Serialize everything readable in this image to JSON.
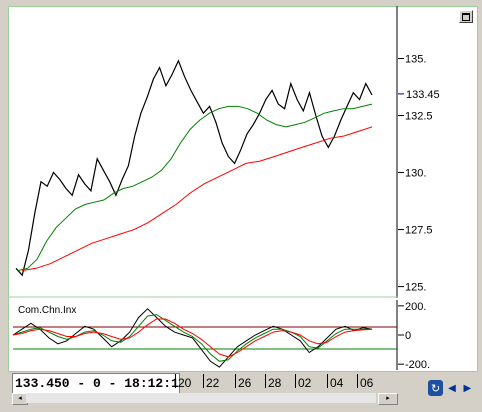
{
  "chart_data": [
    {
      "type": "line",
      "title": "",
      "y_ticks": [
        "135.",
        "132.5",
        "130.",
        "127.5",
        "125."
      ],
      "last_value": "133.45",
      "ylim": [
        124.5,
        137.3
      ],
      "series": [
        {
          "color": "#000000",
          "values": [
            125.8,
            125.5,
            126.6,
            128.2,
            129.6,
            129.4,
            130.0,
            129.7,
            129.3,
            129.0,
            129.9,
            129.5,
            129.2,
            130.6,
            130.1,
            129.6,
            129.0,
            129.7,
            130.3,
            131.6,
            132.6,
            133.3,
            134.1,
            134.6,
            133.8,
            134.3,
            134.9,
            134.2,
            133.6,
            133.1,
            132.6,
            132.9,
            132.2,
            131.3,
            130.7,
            130.4,
            131.0,
            131.7,
            132.1,
            132.6,
            133.2,
            133.6,
            133.0,
            132.8,
            133.9,
            133.2,
            132.7,
            133.5,
            132.5,
            131.6,
            131.1,
            131.6,
            132.3,
            132.9,
            133.5,
            133.2,
            133.9,
            133.4
          ]
        },
        {
          "color": "#008000",
          "values": [
            125.7,
            125.8,
            126.2,
            127.0,
            127.6,
            128.0,
            128.4,
            128.6,
            128.7,
            128.8,
            129.1,
            129.3,
            129.4,
            129.6,
            129.8,
            130.1,
            130.6,
            131.3,
            131.9,
            132.3,
            132.6,
            132.8,
            132.9,
            132.9,
            132.8,
            132.6,
            132.3,
            132.1,
            132.0,
            132.1,
            132.2,
            132.4,
            132.6,
            132.7,
            132.8,
            132.8,
            132.9,
            133.0
          ]
        },
        {
          "color": "#ff0000",
          "values": [
            125.7,
            125.8,
            126.0,
            126.3,
            126.6,
            126.9,
            127.1,
            127.3,
            127.5,
            127.8,
            128.2,
            128.6,
            129.1,
            129.5,
            129.8,
            130.1,
            130.4,
            130.5,
            130.7,
            130.9,
            131.1,
            131.3,
            131.5,
            131.6,
            131.8,
            132.0
          ]
        }
      ]
    },
    {
      "type": "line",
      "title": "Com.Chn.Inx",
      "y_ticks": [
        "200.",
        "0",
        "-200."
      ],
      "ylim": [
        -240,
        240
      ],
      "series": [
        {
          "color": "#000000",
          "values": [
            0,
            40,
            80,
            40,
            -20,
            -60,
            -40,
            10,
            60,
            40,
            -20,
            -80,
            -40,
            20,
            120,
            180,
            120,
            60,
            20,
            0,
            -20,
            -100,
            -180,
            -220,
            -150,
            -80,
            -40,
            0,
            30,
            60,
            40,
            0,
            -40,
            -120,
            -80,
            -20,
            40,
            60,
            30,
            50,
            40
          ]
        },
        {
          "color": "#008000",
          "values": [
            0,
            20,
            40,
            50,
            20,
            -10,
            -30,
            -10,
            20,
            30,
            0,
            -40,
            -50,
            -10,
            60,
            130,
            140,
            100,
            60,
            20,
            -10,
            -60,
            -130,
            -180,
            -170,
            -110,
            -60,
            -20,
            10,
            40,
            40,
            20,
            -10,
            -80,
            -90,
            -40,
            10,
            40,
            40,
            40,
            40
          ]
        },
        {
          "color": "#ff0000",
          "values": [
            0,
            10,
            30,
            40,
            30,
            10,
            -10,
            -10,
            10,
            20,
            10,
            -10,
            -30,
            -20,
            20,
            70,
            110,
            110,
            80,
            40,
            10,
            -30,
            -80,
            -130,
            -150,
            -120,
            -80,
            -40,
            -10,
            20,
            30,
            20,
            0,
            -40,
            -60,
            -50,
            -10,
            20,
            30,
            35,
            40
          ]
        }
      ]
    }
  ],
  "status": {
    "readout": "133.450 - 0 - 18:12:19"
  },
  "dates": [
    "20",
    "22",
    "26",
    "28",
    "02",
    "04",
    "06"
  ],
  "nav": {
    "refresh_icon": "refresh-icon",
    "prev_icon": "triangle-left-icon",
    "next_icon": "triangle-right-icon"
  }
}
